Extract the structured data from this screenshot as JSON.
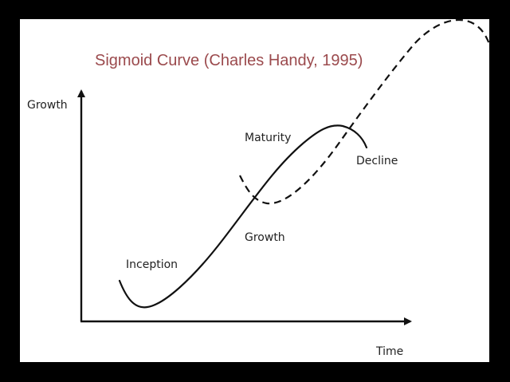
{
  "title": "Sigmoid Curve (Charles Handy, 1995)",
  "axes": {
    "y_label": "Growth",
    "x_label": "Time"
  },
  "stages": {
    "inception": "Inception",
    "growth": "Growth",
    "maturity": "Maturity",
    "decline": "Decline"
  },
  "colors": {
    "title": "#9b4a4d",
    "line": "#111111",
    "background": "#ffffff",
    "frame": "#000000"
  }
}
